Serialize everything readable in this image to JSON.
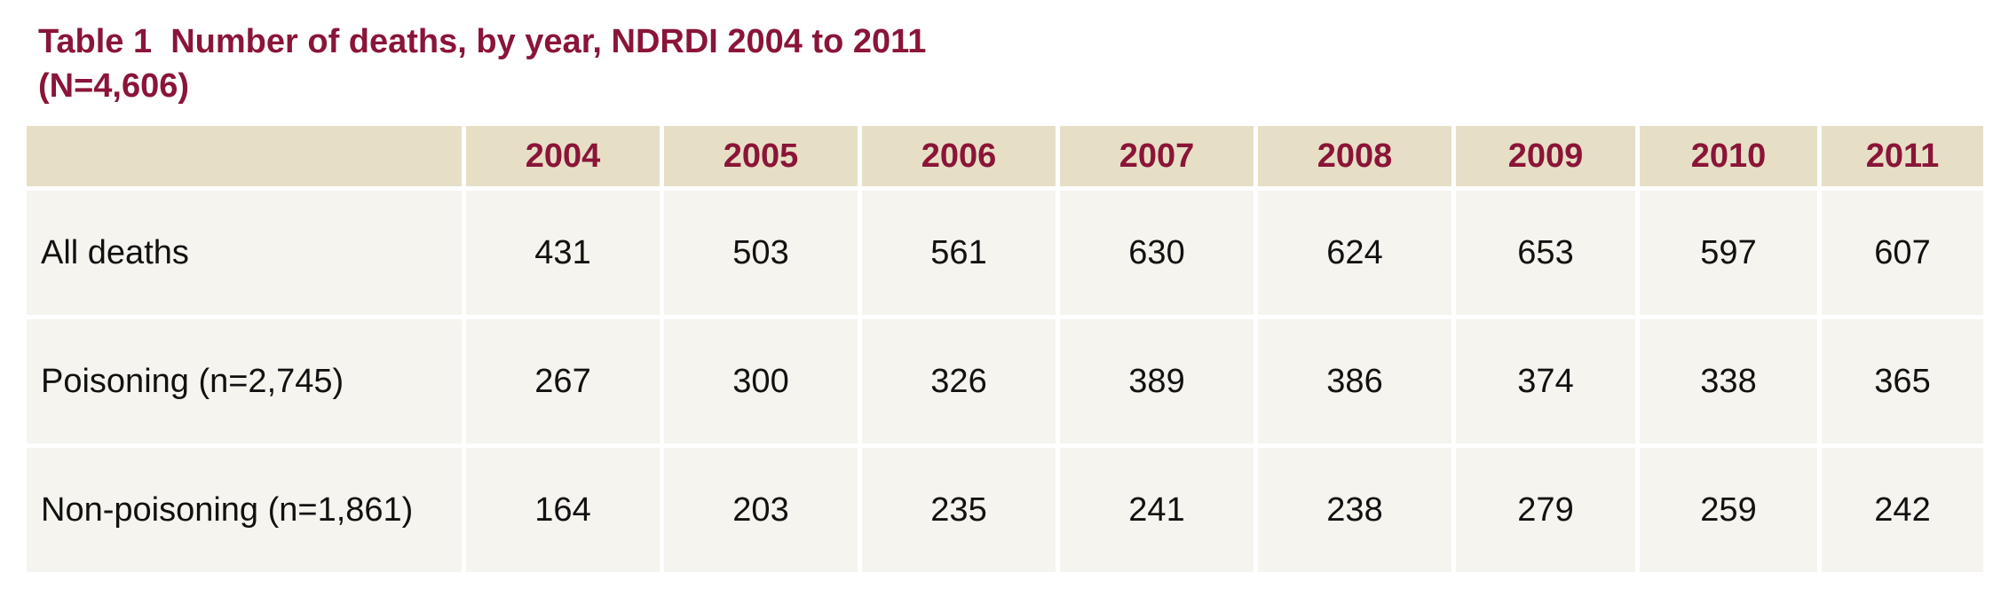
{
  "header": {
    "title": "Table 1  Number of deaths, by year, NDRDI 2004 to 2011 (N=4,606)"
  },
  "table": {
    "columns": [
      "2004",
      "2005",
      "2006",
      "2007",
      "2008",
      "2009",
      "2010",
      "2011"
    ],
    "rows": [
      {
        "label": "All deaths",
        "values": [
          431,
          503,
          561,
          630,
          624,
          653,
          597,
          607
        ]
      },
      {
        "label": "Poisoning (n=2,745)",
        "values": [
          267,
          300,
          326,
          389,
          386,
          374,
          338,
          365
        ]
      },
      {
        "label": "Non-poisoning (n=1,861)",
        "values": [
          164,
          203,
          235,
          241,
          238,
          279,
          259,
          242
        ]
      }
    ]
  }
}
